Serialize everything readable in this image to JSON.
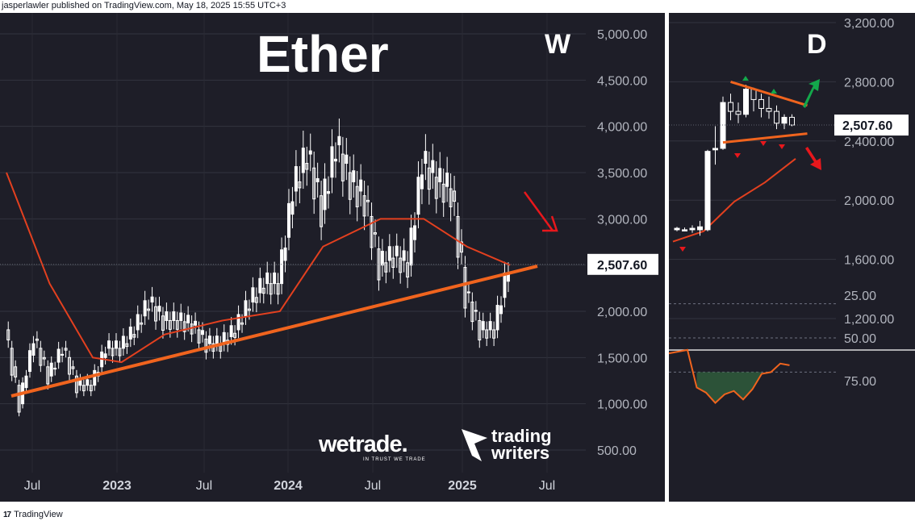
{
  "header": {
    "attribution": "jasperlawler published on TradingView.com, May 18, 2025 15:55 UTC+3"
  },
  "footer": {
    "logo_text": "17",
    "brand": "TradingView"
  },
  "colors": {
    "background": "#1e1e28",
    "candle": "#ffffff",
    "moving_average": "#e3401f",
    "trendline": "#f0641e",
    "arrow_down": "#e8171c",
    "arrow_up": "#13a84b",
    "rsi_line": "#f0641e",
    "rsi_fill": "#2f5f3c",
    "price_label_bg": "#ffffff"
  },
  "branding": {
    "wetrade": "wetrade.",
    "wetrade_tagline": "IN TRUST WE TRADE",
    "trading": "trading",
    "writers": "writers"
  },
  "chart_data": [
    {
      "type": "candlestick",
      "title": "Ether",
      "timeframe_label": "W",
      "x_labels": [
        "Jul",
        "2023",
        "Jul",
        "2024",
        "Jul",
        "2025",
        "Jul"
      ],
      "y_ticks": [
        "5,000.00",
        "4,500.00",
        "4,000.00",
        "3,500.00",
        "3,000.00",
        "2,500.00",
        "2,000.00",
        "1,500.00",
        "1,000.00",
        "500.00"
      ],
      "ylim": [
        200,
        5300
      ],
      "last_price": "2,507.60",
      "grid": true,
      "close_series": [
        {
          "date": "2022-06",
          "close": 1800
        },
        {
          "date": "2022-07",
          "close": 1000
        },
        {
          "date": "2022-08",
          "close": 1700
        },
        {
          "date": "2022-09",
          "close": 1300
        },
        {
          "date": "2022-10",
          "close": 1600
        },
        {
          "date": "2022-11",
          "close": 1200
        },
        {
          "date": "2022-12",
          "close": 1200
        },
        {
          "date": "2023-01",
          "close": 1600
        },
        {
          "date": "2023-02",
          "close": 1600
        },
        {
          "date": "2023-03",
          "close": 1800
        },
        {
          "date": "2023-04",
          "close": 2100
        },
        {
          "date": "2023-05",
          "close": 1900
        },
        {
          "date": "2023-06",
          "close": 1900
        },
        {
          "date": "2023-07",
          "close": 1850
        },
        {
          "date": "2023-08",
          "close": 1650
        },
        {
          "date": "2023-09",
          "close": 1650
        },
        {
          "date": "2023-10",
          "close": 1800
        },
        {
          "date": "2023-11",
          "close": 2100
        },
        {
          "date": "2023-12",
          "close": 2300
        },
        {
          "date": "2024-01",
          "close": 2300
        },
        {
          "date": "2024-02",
          "close": 3300
        },
        {
          "date": "2024-03",
          "close": 3700
        },
        {
          "date": "2024-04",
          "close": 3100
        },
        {
          "date": "2024-05",
          "close": 3800
        },
        {
          "date": "2024-06",
          "close": 3400
        },
        {
          "date": "2024-07",
          "close": 3200
        },
        {
          "date": "2024-08",
          "close": 2500
        },
        {
          "date": "2024-09",
          "close": 2600
        },
        {
          "date": "2024-10",
          "close": 2500
        },
        {
          "date": "2024-11",
          "close": 3600
        },
        {
          "date": "2024-12",
          "close": 3400
        },
        {
          "date": "2025-01",
          "close": 3300
        },
        {
          "date": "2025-02",
          "close": 2200
        },
        {
          "date": "2025-03",
          "close": 1800
        },
        {
          "date": "2025-04",
          "close": 1800
        },
        {
          "date": "2025-05",
          "close": 2500
        }
      ],
      "moving_average": [
        {
          "date": "2022-06",
          "value": 3500
        },
        {
          "date": "2022-09",
          "value": 2300
        },
        {
          "date": "2022-12",
          "value": 1500
        },
        {
          "date": "2023-02",
          "value": 1450
        },
        {
          "date": "2023-05",
          "value": 1750
        },
        {
          "date": "2023-09",
          "value": 1900
        },
        {
          "date": "2024-01",
          "value": 2000
        },
        {
          "date": "2024-04",
          "value": 2700
        },
        {
          "date": "2024-08",
          "value": 3000
        },
        {
          "date": "2024-11",
          "value": 3000
        },
        {
          "date": "2025-02",
          "value": 2700
        },
        {
          "date": "2025-05",
          "value": 2500
        }
      ],
      "trendline": [
        {
          "date": "2022-06",
          "value": 900
        },
        {
          "date": "2025-06",
          "value": 2500
        }
      ]
    },
    {
      "type": "candlestick",
      "timeframe_label": "D",
      "y_ticks": [
        "3,200.00",
        "2,800.00",
        "2,400.00",
        "2,000.00",
        "1,600.00",
        "1,200.00"
      ],
      "ylim": [
        1000,
        3200
      ],
      "last_price": "2,507.60",
      "candles": [
        {
          "o": 1800,
          "h": 1820,
          "l": 1790,
          "c": 1810
        },
        {
          "o": 1800,
          "h": 1815,
          "l": 1790,
          "c": 1800
        },
        {
          "o": 1800,
          "h": 1830,
          "l": 1780,
          "c": 1810
        },
        {
          "o": 1800,
          "h": 1860,
          "l": 1760,
          "c": 1820
        },
        {
          "o": 1800,
          "h": 2340,
          "l": 1790,
          "c": 2330
        },
        {
          "o": 2340,
          "h": 2500,
          "l": 2240,
          "c": 2350
        },
        {
          "o": 2350,
          "h": 2700,
          "l": 2340,
          "c": 2660
        },
        {
          "o": 2660,
          "h": 2720,
          "l": 2540,
          "c": 2600
        },
        {
          "o": 2600,
          "h": 2660,
          "l": 2520,
          "c": 2580
        },
        {
          "o": 2580,
          "h": 2780,
          "l": 2560,
          "c": 2750
        },
        {
          "o": 2750,
          "h": 2760,
          "l": 2600,
          "c": 2680
        },
        {
          "o": 2680,
          "h": 2720,
          "l": 2560,
          "c": 2620
        },
        {
          "o": 2620,
          "h": 2700,
          "l": 2550,
          "c": 2600
        },
        {
          "o": 2600,
          "h": 2640,
          "l": 2480,
          "c": 2520
        },
        {
          "o": 2520,
          "h": 2580,
          "l": 2480,
          "c": 2560
        },
        {
          "o": 2560,
          "h": 2580,
          "l": 2500,
          "c": 2508
        }
      ],
      "moving_average": [
        {
          "i": 0,
          "value": 1720
        },
        {
          "i": 4,
          "value": 1790
        },
        {
          "i": 8,
          "value": 1990
        },
        {
          "i": 12,
          "value": 2120
        },
        {
          "i": 16,
          "value": 2280
        }
      ],
      "triangle_upper": [
        {
          "i": 7,
          "value": 2800
        },
        {
          "i": 17,
          "value": 2640
        }
      ],
      "triangle_lower": [
        {
          "i": 6,
          "value": 2390
        },
        {
          "i": 17,
          "value": 2450
        }
      ]
    },
    {
      "type": "line",
      "indicator": "RSI",
      "y_ticks": [
        "75.00",
        "50.00",
        "25.00"
      ],
      "ylim": [
        20,
        100
      ],
      "reference_levels": [
        70,
        50,
        30
      ],
      "values": [
        59,
        58,
        57,
        79,
        82,
        88,
        83,
        81,
        86,
        80,
        71,
        70,
        65,
        66
      ]
    }
  ]
}
